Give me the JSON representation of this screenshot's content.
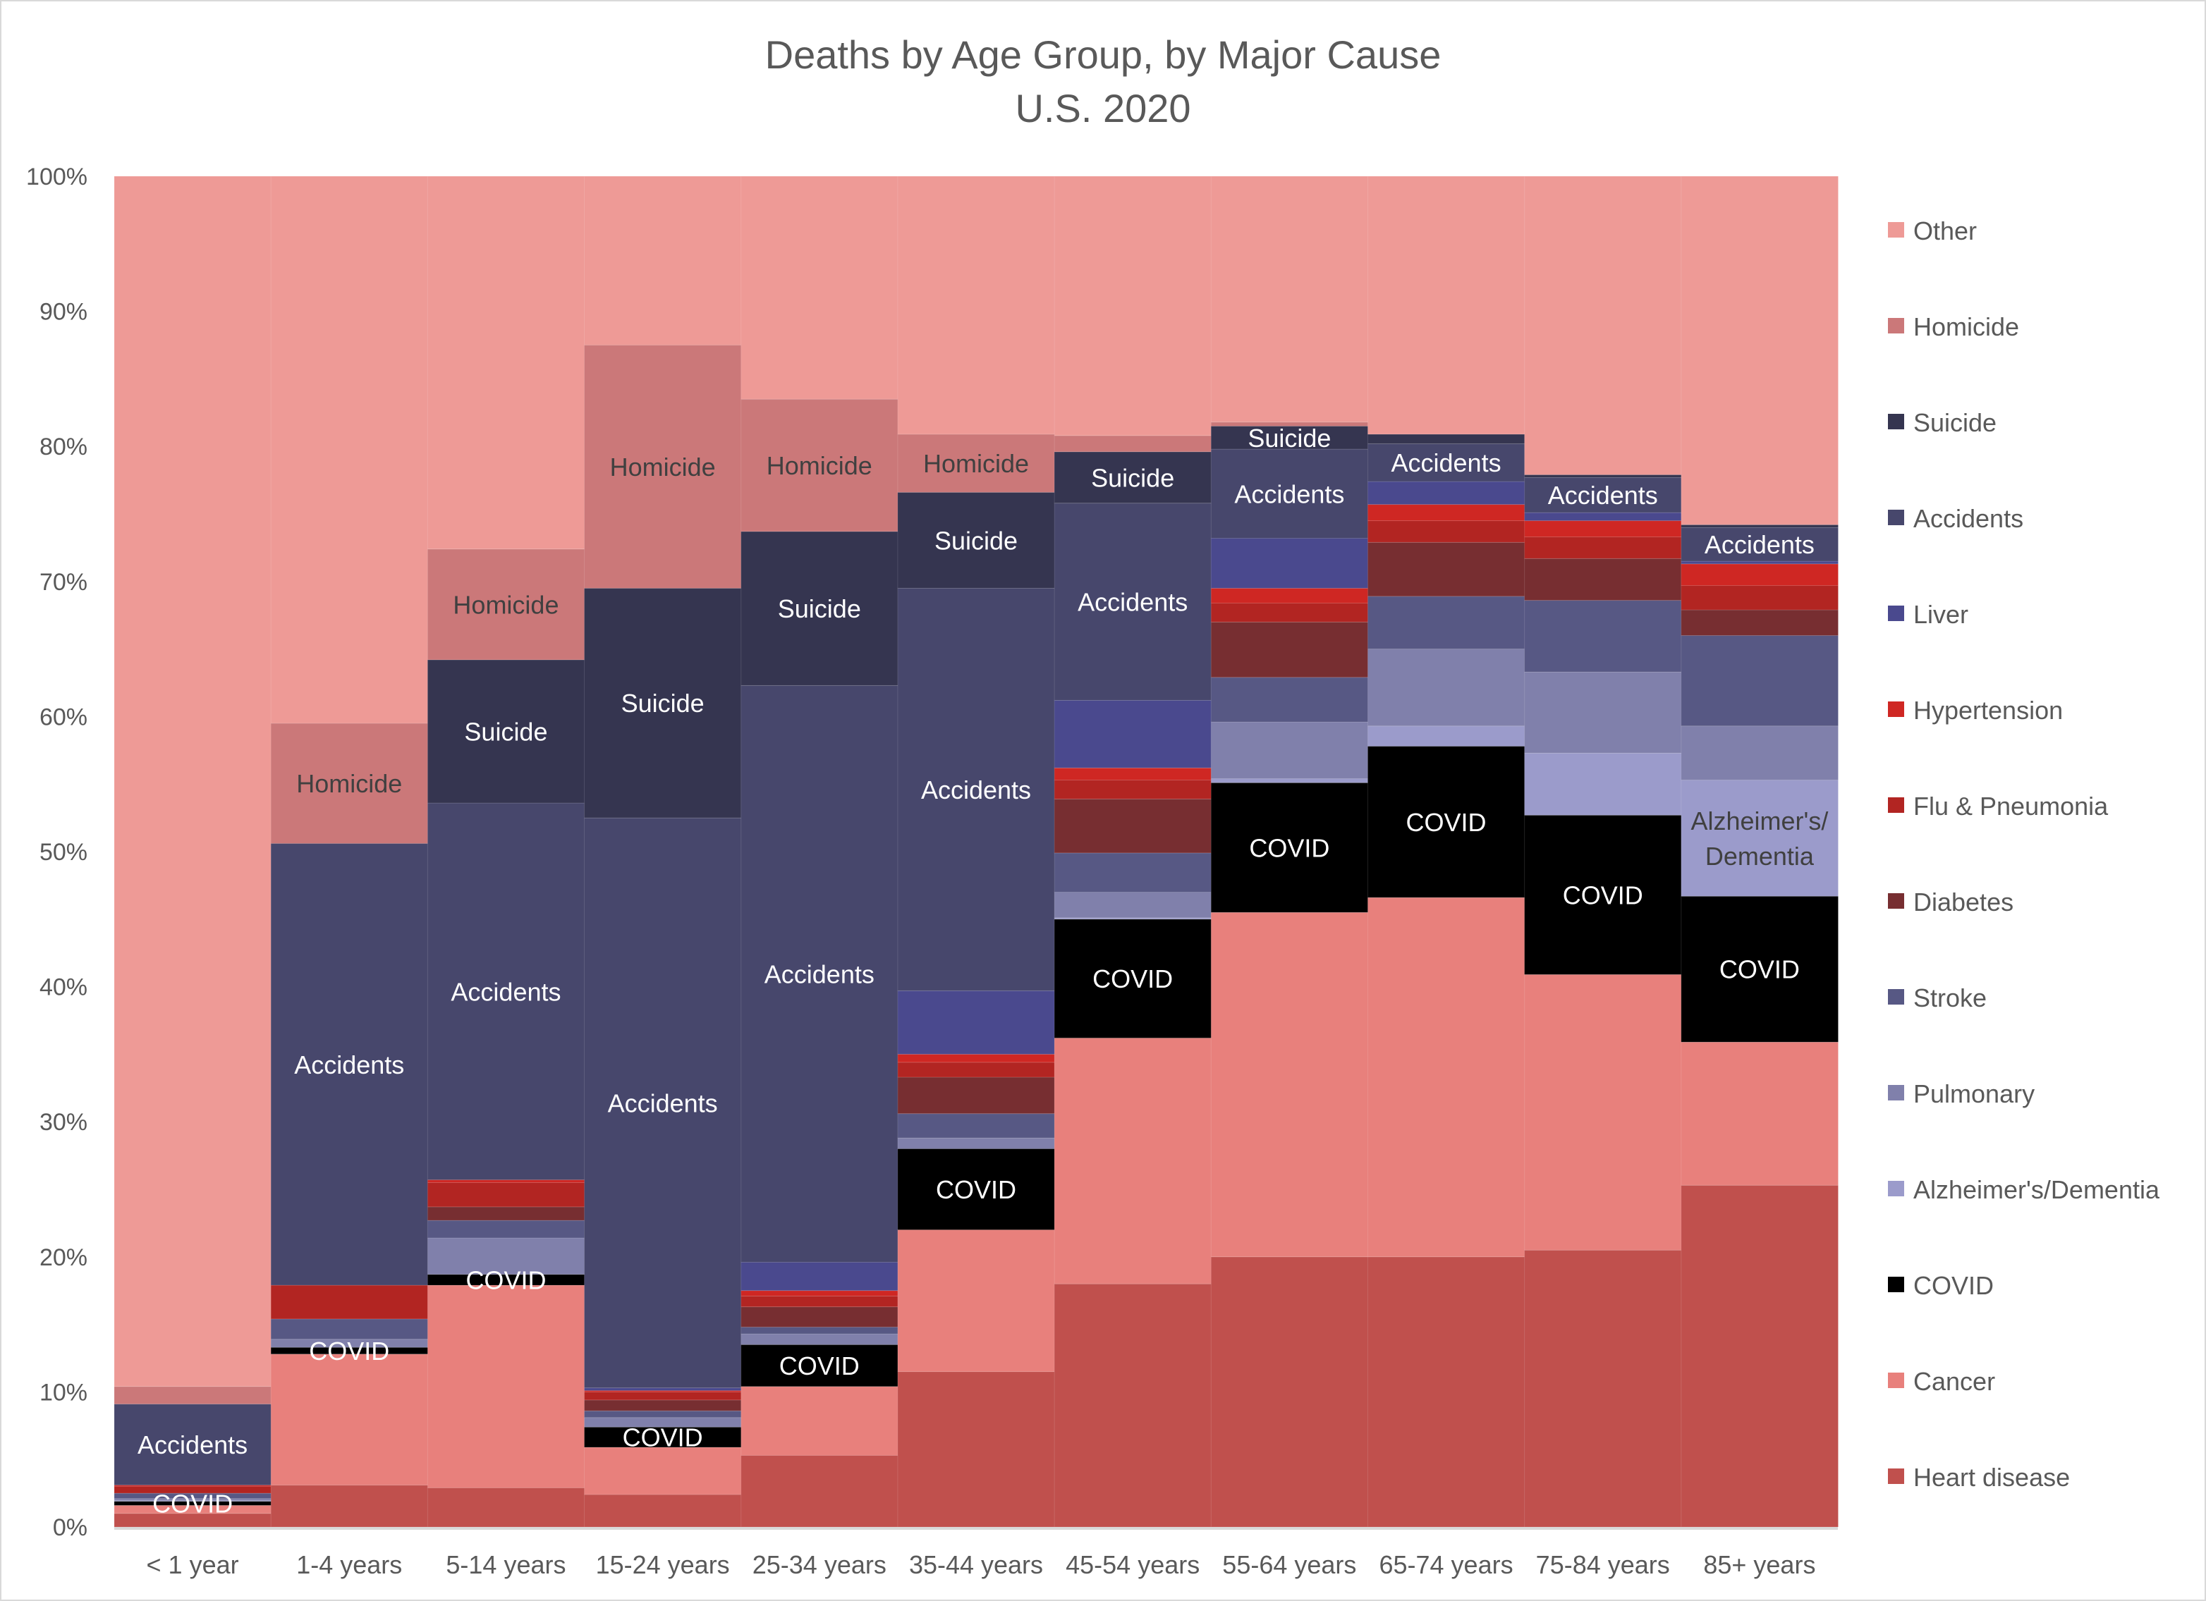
{
  "chart_data": {
    "type": "bar",
    "stacked": "100%",
    "title": "Deaths by Age Group, by Major Cause",
    "subtitle": "U.S. 2020",
    "xlabel": "",
    "ylabel": "",
    "ylim": [
      0,
      100
    ],
    "yticks": [
      "0%",
      "10%",
      "20%",
      "30%",
      "40%",
      "50%",
      "60%",
      "70%",
      "80%",
      "90%",
      "100%"
    ],
    "grid": false,
    "legend_position": "right",
    "categories": [
      "< 1 year",
      "1-4 years",
      "5-14 years",
      "15-24 years",
      "25-34 years",
      "35-44 years",
      "45-54 years",
      "55-64 years",
      "65-74 years",
      "75-84 years",
      "85+ years"
    ],
    "series": [
      {
        "name": "Heart disease",
        "color": "#c0504d",
        "label_color": "#ffffff",
        "values": [
          1.0,
          3.1,
          2.9,
          2.4,
          5.3,
          11.5,
          18.0,
          20.0,
          20.0,
          20.5,
          25.3
        ]
      },
      {
        "name": "Cancer",
        "color": "#e8807c",
        "label_color": "#ffffff",
        "values": [
          0.6,
          9.7,
          15.0,
          3.5,
          5.1,
          10.5,
          18.2,
          25.5,
          26.6,
          20.4,
          10.6
        ]
      },
      {
        "name": "COVID",
        "color": "#000000",
        "label_color": "#ffffff",
        "values": [
          0.3,
          0.5,
          0.8,
          1.5,
          3.1,
          6.0,
          8.8,
          9.6,
          11.2,
          11.8,
          10.8
        ]
      },
      {
        "name": "Alzheimer's/Dementia",
        "color": "#9b9bcb",
        "label_color": "#404040",
        "values": [
          0.05,
          0.0,
          0.0,
          0.0,
          0.0,
          0.0,
          0.1,
          0.3,
          1.5,
          4.6,
          8.6
        ]
      },
      {
        "name": "Pulmonary",
        "color": "#8080ab",
        "label_color": "#ffffff",
        "values": [
          0.15,
          0.6,
          2.7,
          0.7,
          0.8,
          0.8,
          1.9,
          4.2,
          5.7,
          6.0,
          4.0
        ]
      },
      {
        "name": "Stroke",
        "color": "#575884",
        "label_color": "#ffffff",
        "values": [
          0.4,
          1.5,
          1.3,
          0.5,
          0.5,
          1.8,
          2.9,
          3.3,
          3.9,
          5.3,
          6.7
        ]
      },
      {
        "name": "Diabetes",
        "color": "#772e31",
        "label_color": "#ffffff",
        "values": [
          0.0,
          0.0,
          1.0,
          0.8,
          1.5,
          2.7,
          4.0,
          4.1,
          4.0,
          3.1,
          1.9
        ]
      },
      {
        "name": "Flu & Pneumonia",
        "color": "#b22522",
        "label_color": "#ffffff",
        "values": [
          0.5,
          2.5,
          1.8,
          0.6,
          0.8,
          1.1,
          1.4,
          1.4,
          1.6,
          1.6,
          1.8
        ]
      },
      {
        "name": "Hypertension",
        "color": "#cf2723",
        "label_color": "#ffffff",
        "values": [
          0.1,
          0.0,
          0.2,
          0.1,
          0.4,
          0.6,
          0.9,
          1.1,
          1.2,
          1.2,
          1.6
        ]
      },
      {
        "name": "Liver",
        "color": "#4a498e",
        "label_color": "#ffffff",
        "values": [
          0.0,
          0.0,
          0.0,
          0.2,
          2.1,
          4.7,
          5.0,
          3.7,
          1.7,
          0.6,
          0.2
        ]
      },
      {
        "name": "Accidents",
        "color": "#47476c",
        "label_color": "#ffffff",
        "values": [
          6.0,
          32.7,
          27.9,
          42.2,
          42.7,
          29.8,
          14.6,
          6.6,
          2.8,
          2.6,
          2.5
        ]
      },
      {
        "name": "Suicide",
        "color": "#353550",
        "label_color": "#ffffff",
        "values": [
          0.0,
          0.0,
          10.6,
          17.0,
          11.4,
          7.1,
          3.8,
          1.7,
          0.7,
          0.2,
          0.2
        ]
      },
      {
        "name": "Homicide",
        "color": "#cb7879",
        "label_color": "#404040",
        "values": [
          1.3,
          8.9,
          8.2,
          18.0,
          9.8,
          4.3,
          1.2,
          0.3,
          0.0,
          0.0,
          0.0
        ]
      },
      {
        "name": "Other",
        "color": "#ee9a96",
        "label_color": "#404040",
        "values": [
          89.6,
          40.5,
          27.6,
          12.5,
          16.5,
          19.1,
          19.2,
          18.2,
          19.1,
          22.1,
          25.8
        ]
      }
    ],
    "legend_order": [
      "Other",
      "Homicide",
      "Suicide",
      "Accidents",
      "Liver",
      "Hypertension",
      "Flu & Pneumonia",
      "Diabetes",
      "Stroke",
      "Pulmonary",
      "Alzheimer's/Dementia",
      "COVID",
      "Cancer",
      "Heart disease"
    ],
    "segment_labels": [
      {
        "category": 0,
        "series": "COVID",
        "text": "COVID"
      },
      {
        "category": 0,
        "series": "Accidents",
        "text": "Accidents"
      },
      {
        "category": 1,
        "series": "COVID",
        "text": "COVID"
      },
      {
        "category": 1,
        "series": "Accidents",
        "text": "Accidents"
      },
      {
        "category": 1,
        "series": "Homicide",
        "text": "Homicide"
      },
      {
        "category": 2,
        "series": "COVID",
        "text": "COVID"
      },
      {
        "category": 2,
        "series": "Accidents",
        "text": "Accidents"
      },
      {
        "category": 2,
        "series": "Suicide",
        "text": "Suicide"
      },
      {
        "category": 2,
        "series": "Homicide",
        "text": "Homicide"
      },
      {
        "category": 3,
        "series": "COVID",
        "text": "COVID"
      },
      {
        "category": 3,
        "series": "Accidents",
        "text": "Accidents"
      },
      {
        "category": 3,
        "series": "Suicide",
        "text": "Suicide"
      },
      {
        "category": 3,
        "series": "Homicide",
        "text": "Homicide"
      },
      {
        "category": 4,
        "series": "COVID",
        "text": "COVID"
      },
      {
        "category": 4,
        "series": "Accidents",
        "text": "Accidents"
      },
      {
        "category": 4,
        "series": "Suicide",
        "text": "Suicide"
      },
      {
        "category": 4,
        "series": "Homicide",
        "text": "Homicide"
      },
      {
        "category": 5,
        "series": "COVID",
        "text": "COVID"
      },
      {
        "category": 5,
        "series": "Accidents",
        "text": "Accidents"
      },
      {
        "category": 5,
        "series": "Suicide",
        "text": "Suicide"
      },
      {
        "category": 5,
        "series": "Homicide",
        "text": "Homicide"
      },
      {
        "category": 6,
        "series": "COVID",
        "text": "COVID"
      },
      {
        "category": 6,
        "series": "Accidents",
        "text": "Accidents"
      },
      {
        "category": 6,
        "series": "Suicide",
        "text": "Suicide"
      },
      {
        "category": 7,
        "series": "COVID",
        "text": "COVID"
      },
      {
        "category": 7,
        "series": "Accidents",
        "text": "Accidents"
      },
      {
        "category": 7,
        "series": "Suicide",
        "text": "Suicide"
      },
      {
        "category": 8,
        "series": "COVID",
        "text": "COVID"
      },
      {
        "category": 8,
        "series": "Accidents",
        "text": "Accidents"
      },
      {
        "category": 9,
        "series": "COVID",
        "text": "COVID"
      },
      {
        "category": 9,
        "series": "Accidents",
        "text": "Accidents"
      },
      {
        "category": 10,
        "series": "COVID",
        "text": "COVID"
      },
      {
        "category": 10,
        "series": "Alzheimer's/Dementia",
        "text": "Alzheimer's/ Dementia"
      },
      {
        "category": 10,
        "series": "Accidents",
        "text": "Accidents"
      }
    ]
  }
}
